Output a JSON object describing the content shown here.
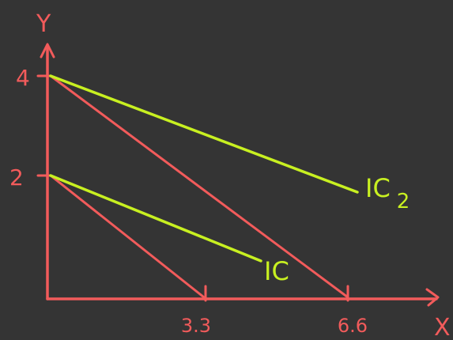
{
  "colors": {
    "background": "#343434",
    "axes": "#f25b5b",
    "budget_lines": "#f25b5b",
    "indifference_curves": "#c8f021"
  },
  "axes": {
    "y_label": "Y",
    "x_label": "X",
    "y_ticks": [
      "4",
      "2"
    ],
    "x_ticks": [
      "3.3",
      "6.6"
    ]
  },
  "curves": {
    "ic_label": "IC",
    "ic2_label": "IC",
    "ic2_subscript": "2"
  }
}
